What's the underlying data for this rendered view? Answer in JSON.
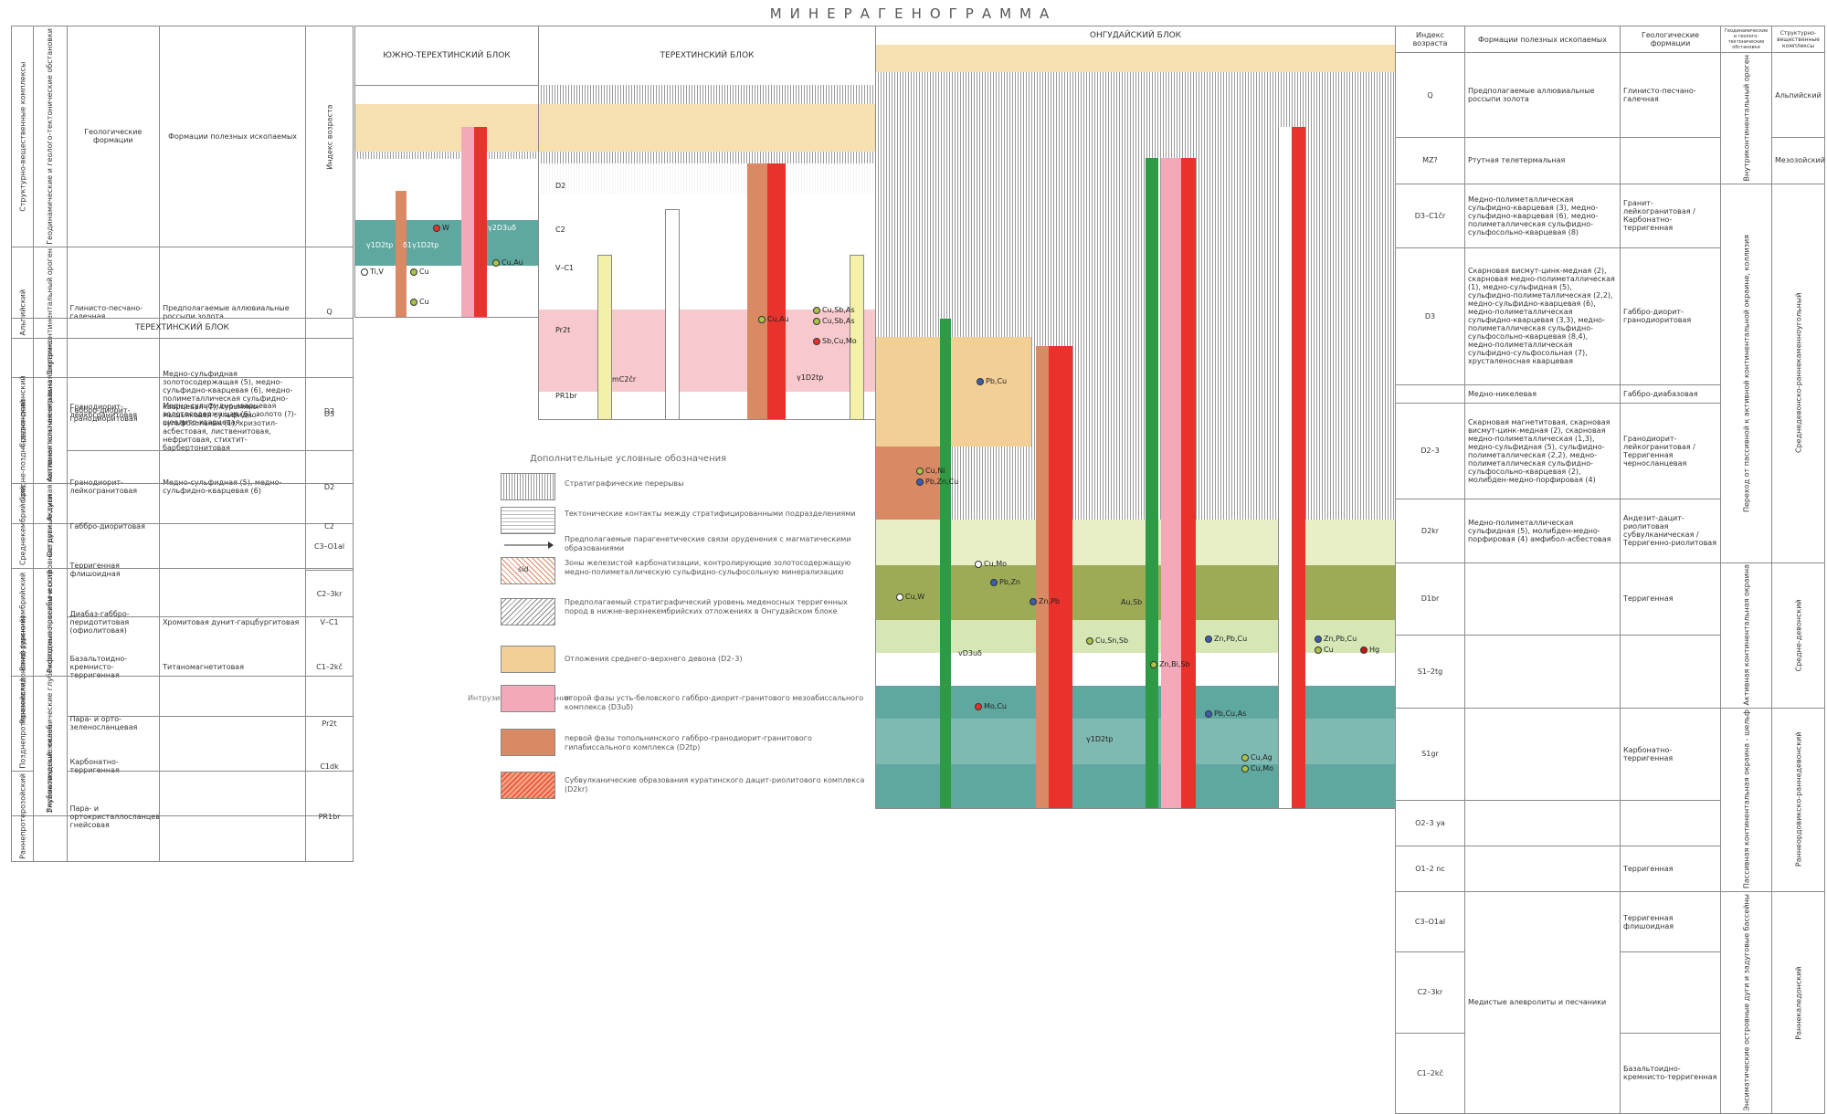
{
  "title": "МИНЕРАГЕНОГРАММА",
  "left_table": {
    "headers": [
      "Структурно-вещественные комплексы",
      "Геодинамические и геолого-тектонические обстановки",
      "Геологические формации",
      "Формации полезных ископаемых",
      "Индекс возраста"
    ],
    "rows": [
      {
        "svk": "Альпийский",
        "geo": "Внутриконтинентальный ороген",
        "formation": "Глинисто-песчано-галечная",
        "minerals": "Предполагаемые аллювиальные россыпи золота",
        "age": "Q"
      },
      {
        "svk": "Средне-поздне-девонский",
        "geo": "Активная континентальная окраина",
        "formation": "Габбро-диорит-гранодиоритовая",
        "minerals": "Медно-сульфидно-кварцевая золотосодержащая (6), золото (?)-шеелито-кварцевая",
        "age": "D3"
      },
      {
        "svk": "",
        "geo": "",
        "formation": "Гранодиорит-лейкогранитовая",
        "minerals": "Медно-сульфидная (5), медно-сульфидно-кварцевая (6)",
        "age": "D2"
      },
      {
        "svk": "Раннекаледонский (урский)",
        "geo": "Энсиматические океанические глубоководные прогибы и островные дуги",
        "formation": "Терригенная флишоидная",
        "minerals": "",
        "age": "C3–O1al"
      },
      {
        "svk": "",
        "geo": "",
        "formation": "",
        "minerals": "",
        "age": "C2–3kr"
      },
      {
        "svk": "",
        "geo": "",
        "formation": "Базальтоидно-кремнисто-терригенная",
        "minerals": "Титаномагнетитовая",
        "age": "C1–2kč"
      },
      {
        "svk": "",
        "geo": "",
        "formation": "Карбонатно-терригенная",
        "minerals": "",
        "age": "C1dk"
      }
    ]
  },
  "left_table2": {
    "title": "ТЕРЕХТИНСКИЙ БЛОК",
    "rows": [
      {
        "svk": "Средне-девонский",
        "geo": "Активная континентальная окраина",
        "formation": "Гранодиорит-лейкогранитовая",
        "minerals": "Медно-сульфидная золотосодержащая (5), медно-сульфидно-кварцевая (6), медно-полиметаллическая сульфидно-кварцевая (7), сурьмяно-мышьяковая сульфидно-сульфосольная (1), хризотил-асбестовая, лиственитовая, нефритовая, стихтит-барбертонитовая",
        "age": "D2"
      },
      {
        "svk": "Среднекембрийский",
        "geo": "Островные дуги",
        "formation": "Габбро-диоритовая",
        "minerals": "",
        "age": "C2"
      },
      {
        "svk": "Венд-ранне-кембрийский",
        "geo": "Рифтогенно-океанический",
        "formation": "Диабаз-габбро-перидотитовая (офиолитовая)",
        "minerals": "Хромитовая дунит-гарцбургитовая",
        "age": "V–C1"
      },
      {
        "svk": "Позднепротерозойский",
        "geo": "",
        "formation": "Пара- и орто-зеленосланцевая",
        "minerals": "",
        "age": "Pr2t"
      },
      {
        "svk": "Раннепротерозойский",
        "geo": "Глубоководный желоб",
        "formation": "Пара- и ортокристаллосланцево-гнейсовая",
        "minerals": "",
        "age": "PR1br"
      }
    ]
  },
  "blocks": {
    "south": "ЮЖНО-ТЕРЕХТИНСКИЙ БЛОК",
    "terekhta": "ТЕРЕХТИНСКИЙ БЛОК",
    "ongudai": "ОНГУДАЙСКИЙ БЛОК"
  },
  "south_labels": [
    "W",
    "Cu",
    "Cu",
    "Ti,V",
    "Cu,Au",
    "γ1D2tp",
    "δ1γ1D2tp",
    "γ2D3uδ"
  ],
  "terekhta_labels": [
    "D2",
    "C2",
    "V–C1",
    "Pr2t",
    "PR1br",
    "Cu,Sb,As",
    "Cu,Sb,As",
    "Sb,Cu,Mo",
    "Cu,Au",
    "mC2čr",
    "γ1D2tp"
  ],
  "ongudai_labels": [
    "Pb,Cu",
    "Cu,Ni",
    "Pb,Zn,Cu",
    "Cu,W",
    "Cu,Mo",
    "Pb,Zn",
    "Zn,Pb",
    "Au,Sb",
    "Cu,Sn,Sb",
    "Mo,Cu",
    "Pb,Cu,As",
    "Zn,Pb,Cu",
    "Cu",
    "Hg",
    "Zn,Pb,Cu",
    "Zn,Bi,Sb",
    "Cu,Ag",
    "Cu,Mo",
    "vD3uδ",
    "γ1D2tp"
  ],
  "right_table": {
    "headers": [
      "Индекс возраста",
      "Формации полезных ископаемых",
      "Геологические формации",
      "Геодинамические и геолого-тектонические обстановки",
      "Структурно-вещественные комплексы"
    ],
    "rows": [
      {
        "age": "Q",
        "minerals": "Предполагаемые аллювиальные россыпи золота",
        "formation": "Глинисто-песчано-галечная",
        "geo": "Внутриконтинентальный ороген",
        "svk": "Альпийский"
      },
      {
        "age": "MZ?",
        "minerals": "Ртутная телетермальная",
        "formation": "",
        "geo": "",
        "svk": "Мезозойский"
      },
      {
        "age": "D3–C1čr",
        "minerals": "Медно-полиметаллическая сульфидно-кварцевая (3), медно-сульфидно-кварцевая (6), медно-полиметаллическая сульфидно-сульфосольно-кварцевая (8)",
        "formation": "Гранит-лейкогранитовая",
        "formation2": "Карбонатно-терригенная",
        "geo": "",
        "svk": ""
      },
      {
        "age": "D3",
        "minerals": "Скарновая висмут-цинк-медная (2), скарновая медно-полиметаллическая (1), медно-сульфидная (5), сульфидно-полиметаллическая (2,2), медно-сульфидно-кварцевая (6), медно-полиметаллическая сульфидно-кварцевая (3,3), медно-полиметаллическая сульфидно-сульфосольно-кварцевая (8,4), медно-полиметаллическая сульфидно-сульфосольная (7), хрусталеносная кварцевая",
        "formation": "Габбро-диорит-гранодиоритовая",
        "geo": "",
        "svk": "Среднедевонско-раннекаменноугольный"
      },
      {
        "age": "",
        "minerals": "Медно-никелевая",
        "formation": "Габбро-диабазовая",
        "geo": "",
        "svk": ""
      },
      {
        "age": "D2–3",
        "minerals": "Скарновая магнетитовая, скарновая висмут-цинк-медная (2), скарновая медно-полиметаллическая (1,3), медно-сульфидная (5), сульфидно-полиметаллическая (2,2), медно-полиметаллическая сульфидно-сульфосольно-кварцевая (2), молибден-медно-порфировая (4)",
        "formation": "Гранодиорит-лейкогранитовая",
        "formation2": "Терригенная черносланцевая",
        "geo": "Переход от пассивной к активной континентальной окраине, коллизия",
        "svk": ""
      },
      {
        "age": "D2kr",
        "minerals": "Медно-полиметаллическая сульфидная (5), молибден-медно-порфировая (4) амфибол-асбестовая",
        "formation": "Андезит-дацит-риолитовая субвулканическая",
        "formation2": "Терригенно-риолитовая",
        "geo": "Активная континентальная окраина",
        "svk": "Средне-девонский"
      },
      {
        "age": "D1br",
        "minerals": "",
        "formation": "Терригенная",
        "geo": "",
        "svk": ""
      },
      {
        "age": "S1–2tg",
        "minerals": "",
        "formation": "",
        "geo": "",
        "svk": ""
      },
      {
        "age": "S1gr",
        "minerals": "",
        "formation": "Карбонатно-терригенная",
        "geo": "Пассивная континентальная окраина - шельф",
        "svk": "Раннеордовикско-раннедевонский"
      },
      {
        "age": "O2–3 ya",
        "minerals": "",
        "formation": "",
        "geo": "",
        "svk": ""
      },
      {
        "age": "O1–2 nc",
        "minerals": "",
        "formation": "Терригенная",
        "geo": "",
        "svk": ""
      },
      {
        "age": "C3–O1al",
        "minerals": "",
        "formation": "Терригенная флишоидная",
        "geo": "Энсиматические островные дуги и задуговые бассейны",
        "svk": "Раннекаледонский"
      },
      {
        "age": "C2–3kr",
        "minerals": "Медистые алевролиты и песчаники",
        "formation": "",
        "geo": "",
        "svk": ""
      },
      {
        "age": "C1–2kč",
        "minerals": "",
        "formation": "Базальтоидно-кремнисто-терригенная",
        "geo": "",
        "svk": ""
      }
    ]
  },
  "legend": {
    "title": "Дополнительные условные обозначения",
    "side_label": "Интрузивные образования",
    "items": [
      "Стратиграфические перерывы",
      "Тектонические контакты между стратифицированными подразделениями",
      "Предполагаемые парагенетические связи оруденения с магматическими образованиями",
      "Зоны железистой карбонатизации, контролирующие золотосодержащую медно-полиметаллическую сульфидно-сульфосольную минерализацию",
      "Предполагаемый стратиграфический уровень меденосных терригенных пород в нижне-верхнекембрийских отложениях в Онгудайском блоке",
      "Отложения среднего–верхнего девона (D2–3)",
      "второй фазы усть-беловского габбро-диорит-гранитового мезоабиссального комплекса (D3uδ)",
      "первой фазы топольнинского габбро-гранодиорит-гранитового гипабиссального комплекса (D2tp)",
      "Субвулканические образования куратинского дацит-риолитового комплекса (D2kr)"
    ],
    "sw_label": "sid"
  },
  "colors": {
    "tan": "#f2cf96",
    "pink": "#f4a9b8",
    "orange": "#d98963",
    "red": "#e8322b",
    "teal": "#5fa8a0",
    "olive": "#9eab56",
    "lightgreen": "#d6e7b5",
    "green": "#2f9a45",
    "lightpink": "#f7c8cc"
  }
}
